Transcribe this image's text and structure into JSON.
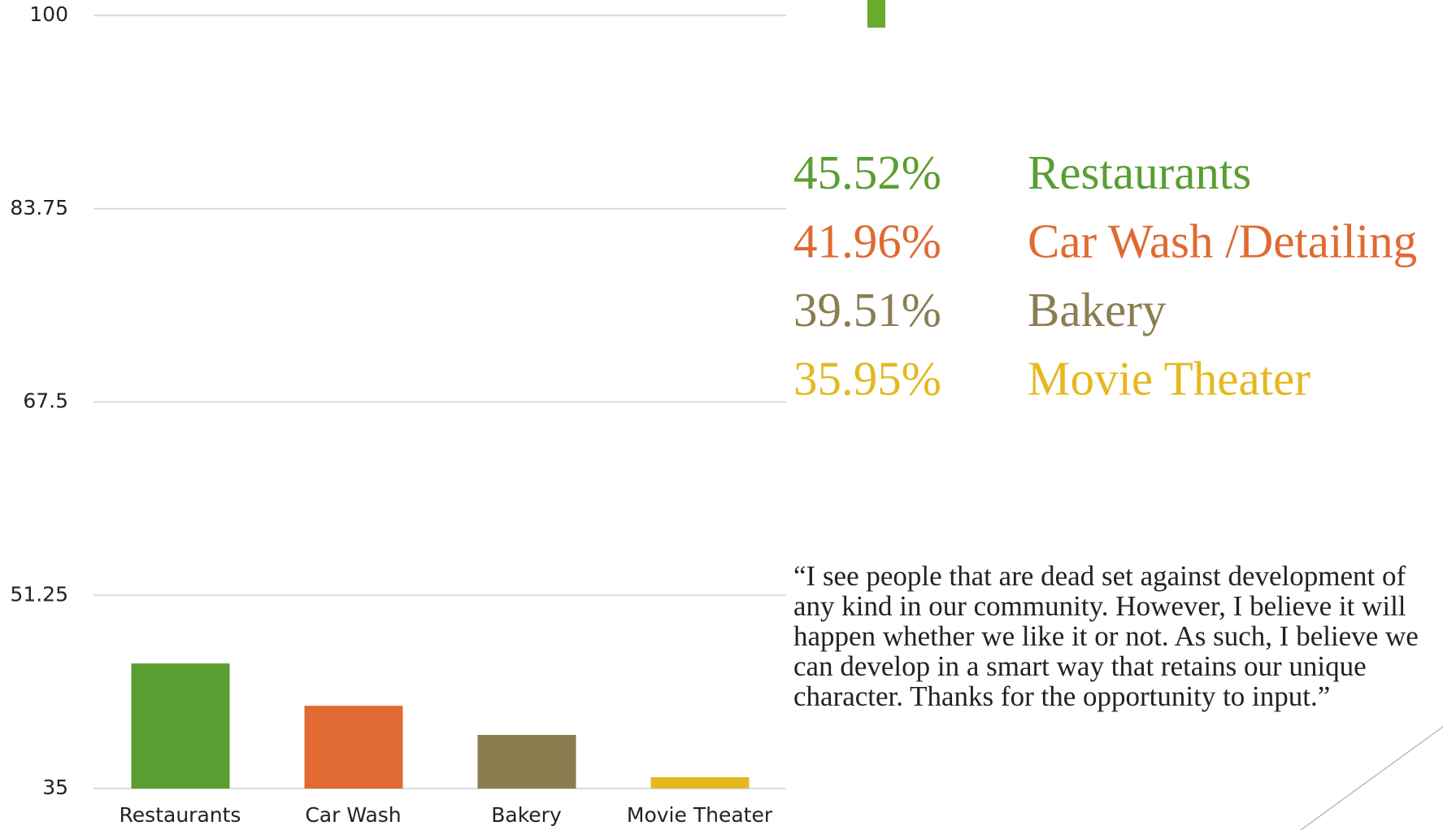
{
  "chart_data": {
    "type": "bar",
    "categories": [
      "Restaurants",
      "Car Wash",
      "Bakery",
      "Movie Theater"
    ],
    "values": [
      45.52,
      41.96,
      39.51,
      35.95
    ],
    "value_labels": [
      "45.52%",
      "41.96%",
      "39.51%",
      "35.95%"
    ],
    "legend_names": [
      "Restaurants",
      "Car Wash /Detailing",
      "Bakery",
      "Movie Theater"
    ],
    "colors": [
      "#5a9e32",
      "#e06a32",
      "#8a7d50",
      "#e6b820"
    ],
    "ylim": [
      35,
      100
    ],
    "yticks": [
      35,
      51.25,
      67.5,
      83.75,
      100
    ],
    "grid": true
  },
  "quote": "“I see people that are dead set against development of any kind in our community. However, I believe it will happen whether we like it or not. As such, I believe we can develop in a smart way that retains our unique character. Thanks for the opportunity to input.”"
}
